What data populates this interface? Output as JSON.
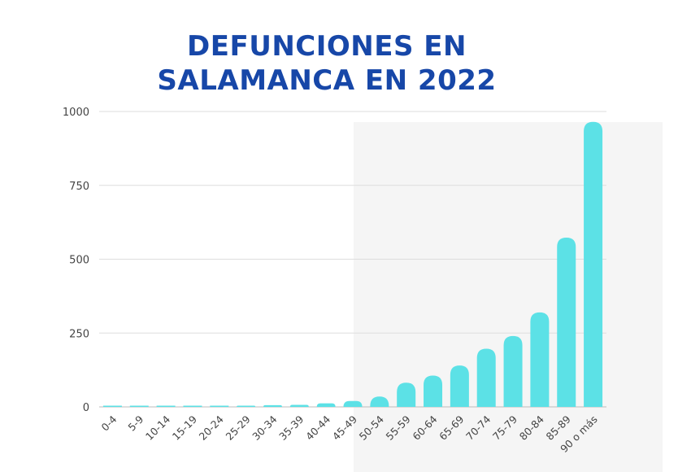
{
  "title_lines": [
    "DEFUNCIONES EN",
    "SALAMANCA EN 2022"
  ],
  "colors": {
    "bar": "#5ce1e6",
    "title": "#1747a8",
    "grid": "#dddddd"
  },
  "chart_data": {
    "type": "bar",
    "title": "DEFUNCIONES EN SALAMANCA EN 2022",
    "categories": [
      "0-4",
      "5-9",
      "10-14",
      "15-19",
      "20-24",
      "25-29",
      "30-34",
      "35-39",
      "40-44",
      "45-49",
      "50-54",
      "55-59",
      "60-64",
      "65-69",
      "70-74",
      "75-79",
      "80-84",
      "85-89",
      "90 o más"
    ],
    "values": [
      2,
      1,
      1,
      2,
      2,
      4,
      6,
      7,
      12,
      20,
      35,
      82,
      106,
      140,
      197,
      240,
      320,
      573,
      965
    ],
    "ylim": [
      0,
      1000
    ],
    "yticks": [
      0,
      250,
      500,
      750,
      1000
    ],
    "grid": true,
    "xlabel": "",
    "ylabel": ""
  }
}
